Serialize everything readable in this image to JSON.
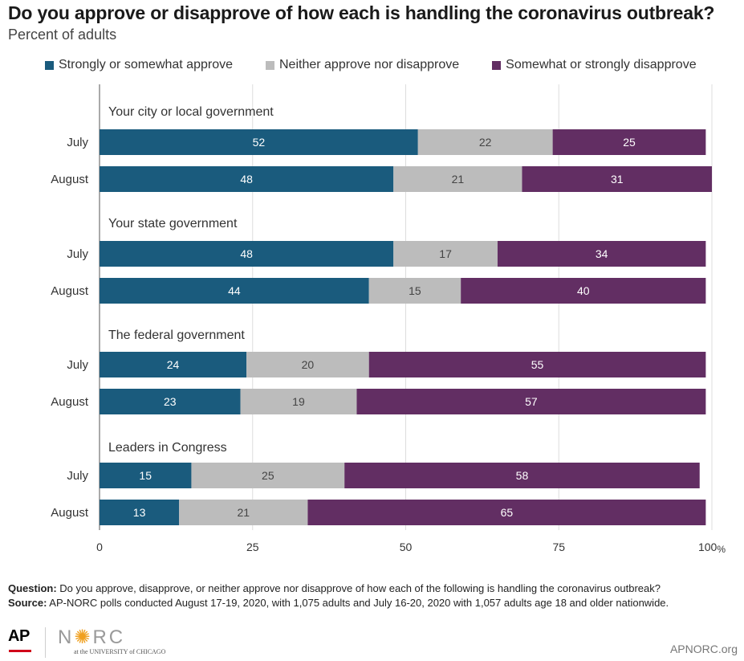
{
  "title": "Do you approve or disapprove of how each is handling the coronavirus outbreak?",
  "subtitle": "Percent of adults",
  "legend": [
    {
      "label": "Strongly or somewhat approve",
      "color": "#1a5b7d"
    },
    {
      "label": "Neither approve nor disapprove",
      "color": "#bcbcbc"
    },
    {
      "label": "Somewhat or strongly disapprove",
      "color": "#622e63"
    }
  ],
  "chart_data": {
    "type": "bar",
    "orientation": "horizontal",
    "stacked": true,
    "xlim": [
      0,
      100
    ],
    "x_ticks": [
      "0",
      "25",
      "50",
      "75",
      "100"
    ],
    "x_unit": "%",
    "grid": true,
    "legend_position": "top",
    "series_names": [
      "Strongly or somewhat approve",
      "Neither approve nor disapprove",
      "Somewhat or strongly disapprove"
    ],
    "groups": [
      {
        "name": "Your city or local government",
        "rows": [
          {
            "label": "July",
            "values": [
              52,
              22,
              25
            ]
          },
          {
            "label": "August",
            "values": [
              48,
              21,
              31
            ]
          }
        ]
      },
      {
        "name": "Your state government",
        "rows": [
          {
            "label": "July",
            "values": [
              48,
              17,
              34
            ]
          },
          {
            "label": "August",
            "values": [
              44,
              15,
              40
            ]
          }
        ]
      },
      {
        "name": "The federal government",
        "rows": [
          {
            "label": "July",
            "values": [
              24,
              20,
              55
            ]
          },
          {
            "label": "August",
            "values": [
              23,
              19,
              57
            ]
          }
        ]
      },
      {
        "name": "Leaders in Congress",
        "rows": [
          {
            "label": "July",
            "values": [
              15,
              25,
              58
            ]
          },
          {
            "label": "August",
            "values": [
              13,
              21,
              65
            ]
          }
        ]
      }
    ]
  },
  "notes": {
    "question_label": "Question:",
    "question_text": " Do you approve, disapprove, or neither approve nor disapprove of how each of the following is handling the coronavirus outbreak?",
    "source_label": "Source:",
    "source_text": " AP-NORC polls conducted August 17-19, 2020, with 1,075 adults and July 16-20, 2020 with 1,057 adults age 18 and older nationwide."
  },
  "footer": {
    "ap_logo": "AP",
    "norc_logo_1": "N",
    "norc_logo_sun": "✺",
    "norc_logo_2": "RC",
    "norc_sub": "at the UNIVERSITY of CHICAGO",
    "site": "APNORC.org"
  }
}
